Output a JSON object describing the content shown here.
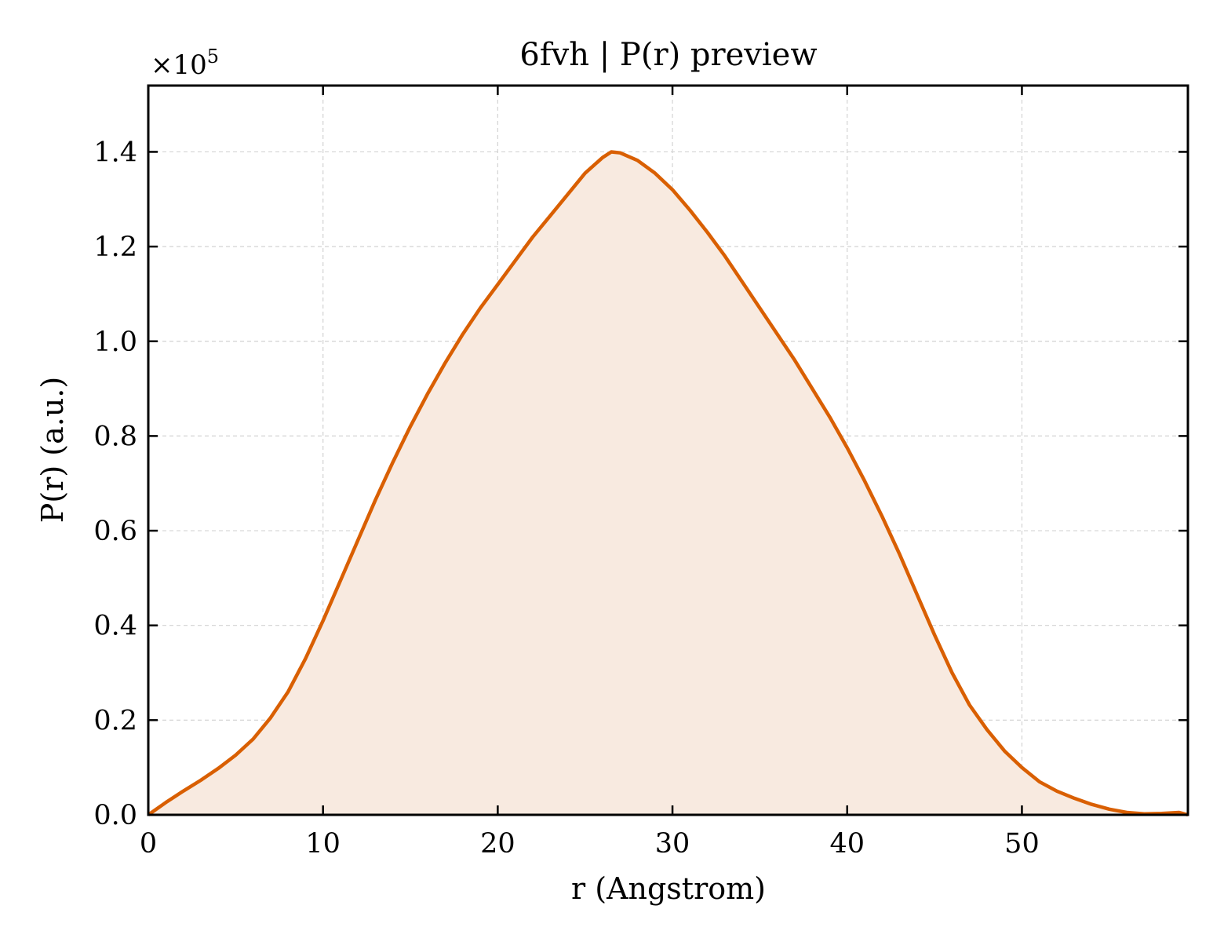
{
  "chart_data": {
    "type": "area",
    "title": "6fvh | P(r) preview",
    "xlabel": "r (Angstrom)",
    "ylabel": "P(r) (a.u.)",
    "y_multiplier": "×10",
    "y_multiplier_exp": "5",
    "xlim": [
      0,
      59.5
    ],
    "ylim": [
      0,
      1.54
    ],
    "x_ticks": [
      0,
      10,
      20,
      30,
      40,
      50
    ],
    "y_ticks": [
      0.0,
      0.2,
      0.4,
      0.6,
      0.8,
      1.0,
      1.2,
      1.4
    ],
    "x_tick_labels": [
      "0",
      "10",
      "20",
      "30",
      "40",
      "50"
    ],
    "y_tick_labels": [
      "0.0",
      "0.2",
      "0.4",
      "0.6",
      "0.8",
      "1.0",
      "1.2",
      "1.4"
    ],
    "grid": true,
    "line_color": "#d95f02",
    "fill_color": "#f8eae0",
    "series": [
      {
        "x": [
          0,
          1,
          2,
          3,
          4,
          5,
          6,
          7,
          8,
          9,
          10,
          11,
          12,
          13,
          14,
          15,
          16,
          17,
          18,
          19,
          20,
          21,
          22,
          23,
          24,
          25,
          26,
          26.5,
          27,
          28,
          29,
          30,
          31,
          32,
          33,
          34,
          35,
          36,
          37,
          38,
          39,
          40,
          41,
          42,
          43,
          44,
          45,
          46,
          47,
          48,
          49,
          50,
          51,
          52,
          53,
          54,
          55,
          56,
          57,
          58,
          59,
          59.5
        ],
        "y": [
          0.0,
          0.026,
          0.05,
          0.073,
          0.098,
          0.126,
          0.16,
          0.205,
          0.26,
          0.33,
          0.41,
          0.495,
          0.58,
          0.665,
          0.745,
          0.82,
          0.89,
          0.955,
          1.015,
          1.07,
          1.12,
          1.17,
          1.22,
          1.265,
          1.31,
          1.355,
          1.388,
          1.4,
          1.398,
          1.382,
          1.355,
          1.32,
          1.277,
          1.23,
          1.18,
          1.125,
          1.07,
          1.015,
          0.96,
          0.9,
          0.84,
          0.775,
          0.705,
          0.63,
          0.55,
          0.465,
          0.38,
          0.3,
          0.232,
          0.18,
          0.135,
          0.1,
          0.07,
          0.05,
          0.035,
          0.022,
          0.012,
          0.005,
          0.002,
          0.003,
          0.005,
          0.0
        ]
      }
    ]
  }
}
